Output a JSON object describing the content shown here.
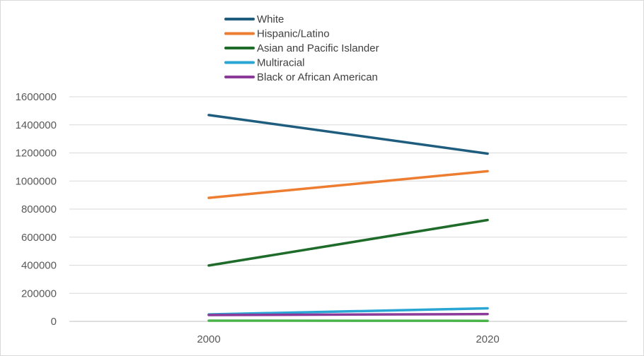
{
  "chart_data": {
    "type": "line",
    "categories": [
      "2000",
      "2020"
    ],
    "ylim": [
      0,
      1600000
    ],
    "y_ticks": [
      "0",
      "200000",
      "400000",
      "600000",
      "800000",
      "1000000",
      "1200000",
      "1400000",
      "1600000"
    ],
    "grid": true,
    "legend_position": "top",
    "series": [
      {
        "name": "White",
        "color": "#1f5d7e",
        "values": [
          1470000,
          1195000
        ]
      },
      {
        "name": "Hispanic/Latino",
        "color": "#ed7d31",
        "values": [
          880000,
          1070000
        ]
      },
      {
        "name": "Asian and Pacific Islander",
        "color": "#1e6b2a",
        "values": [
          398000,
          722000
        ]
      },
      {
        "name": "Multiracial",
        "color": "#2aa6d4",
        "values": [
          50000,
          93000
        ]
      },
      {
        "name": "Black or African American",
        "color": "#8b3a9a",
        "values": [
          45000,
          52000
        ]
      }
    ],
    "extra_series": [
      {
        "color": "#4ab34a",
        "values": [
          5000,
          4000
        ]
      }
    ]
  }
}
